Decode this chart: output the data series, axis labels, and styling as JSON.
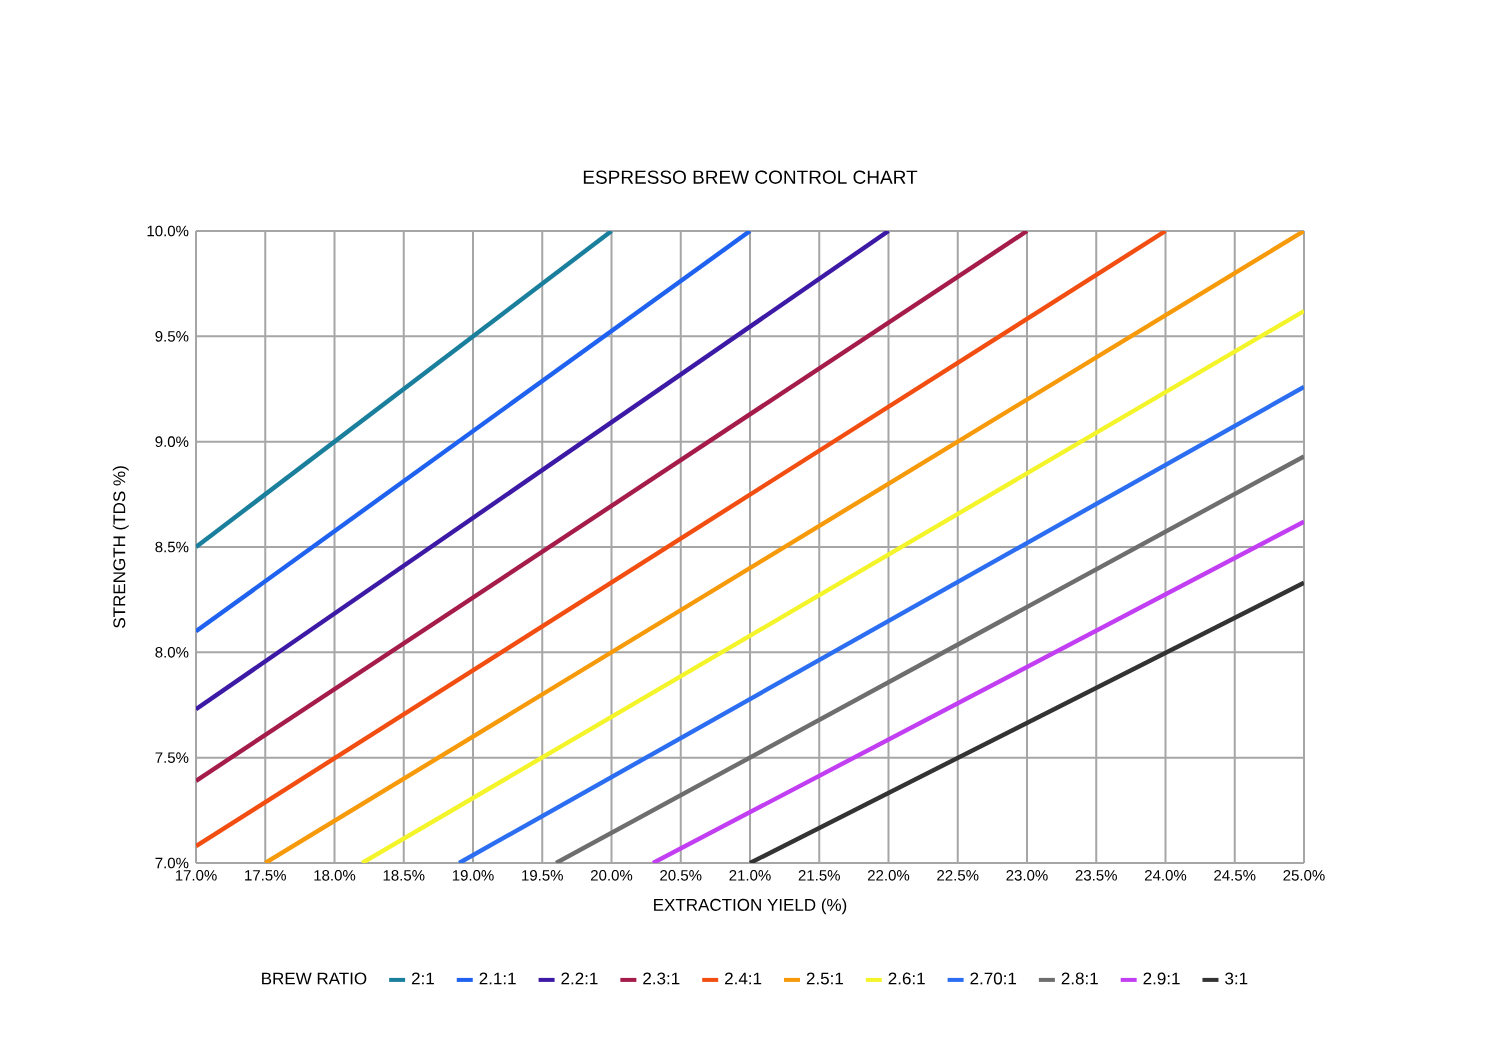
{
  "chart_data": {
    "type": "line",
    "title": "ESPRESSO BREW CONTROL CHART",
    "xlabel": "EXTRACTION YIELD (%)",
    "ylabel": "STRENGTH (TDS %)",
    "legend_title": "BREW RATIO",
    "xlim": [
      17.0,
      25.0
    ],
    "ylim": [
      7.0,
      10.0
    ],
    "xticks": [
      {
        "value": 17.0,
        "label": "17.0%"
      },
      {
        "value": 17.5,
        "label": "17.5%"
      },
      {
        "value": 18.0,
        "label": "18.0%"
      },
      {
        "value": 18.5,
        "label": "18.5%"
      },
      {
        "value": 19.0,
        "label": "19.0%"
      },
      {
        "value": 19.5,
        "label": "19.5%"
      },
      {
        "value": 20.0,
        "label": "20.0%"
      },
      {
        "value": 20.5,
        "label": "20.5%"
      },
      {
        "value": 21.0,
        "label": "21.0%"
      },
      {
        "value": 21.5,
        "label": "21.5%"
      },
      {
        "value": 22.0,
        "label": "22.0%"
      },
      {
        "value": 22.5,
        "label": "22.5%"
      },
      {
        "value": 23.0,
        "label": "23.0%"
      },
      {
        "value": 23.5,
        "label": "23.5%"
      },
      {
        "value": 24.0,
        "label": "24.0%"
      },
      {
        "value": 24.5,
        "label": "24.5%"
      },
      {
        "value": 25.0,
        "label": "25.0%"
      }
    ],
    "yticks": [
      {
        "value": 7.0,
        "label": "7.0%"
      },
      {
        "value": 7.5,
        "label": "7.5%"
      },
      {
        "value": 8.0,
        "label": "8.0%"
      },
      {
        "value": 8.5,
        "label": "8.5%"
      },
      {
        "value": 9.0,
        "label": "9.0%"
      },
      {
        "value": 9.5,
        "label": "9.5%"
      },
      {
        "value": 10.0,
        "label": "10.0%"
      }
    ],
    "grid": true,
    "legend": "bottom",
    "marker": "none",
    "line_style": "solid",
    "series": [
      {
        "name": "2:1",
        "color": "#1a7f9c",
        "x": [
          17.0,
          20.0
        ],
        "values": [
          8.5,
          10.0
        ]
      },
      {
        "name": "2.1:1",
        "color": "#1f62f0",
        "x": [
          17.0,
          21.0
        ],
        "values": [
          8.1,
          10.0
        ]
      },
      {
        "name": "2.2:1",
        "color": "#3d1aa6",
        "x": [
          17.0,
          22.0
        ],
        "values": [
          7.73,
          10.0
        ]
      },
      {
        "name": "2.3:1",
        "color": "#a51c4a",
        "x": [
          17.0,
          23.0
        ],
        "values": [
          7.39,
          10.0
        ]
      },
      {
        "name": "2.4:1",
        "color": "#f24e12",
        "x": [
          17.0,
          24.0
        ],
        "values": [
          7.08,
          10.0
        ]
      },
      {
        "name": "2.5:1",
        "color": "#f79a0a",
        "x": [
          17.5,
          25.0
        ],
        "values": [
          7.0,
          10.0
        ]
      },
      {
        "name": "2.6:1",
        "color": "#f4f42a",
        "x": [
          18.2,
          25.0
        ],
        "values": [
          7.0,
          9.62
        ]
      },
      {
        "name": "2.70:1",
        "color": "#2b6ef2",
        "x": [
          18.9,
          25.0
        ],
        "values": [
          7.0,
          9.26
        ]
      },
      {
        "name": "2.8:1",
        "color": "#6e6e6e",
        "x": [
          19.6,
          25.0
        ],
        "values": [
          7.0,
          8.93
        ]
      },
      {
        "name": "2.9:1",
        "color": "#c23ef2",
        "x": [
          20.3,
          25.0
        ],
        "values": [
          7.0,
          8.62
        ]
      },
      {
        "name": "3:1",
        "color": "#333333",
        "x": [
          21.0,
          25.0
        ],
        "values": [
          7.0,
          8.33
        ]
      }
    ]
  }
}
